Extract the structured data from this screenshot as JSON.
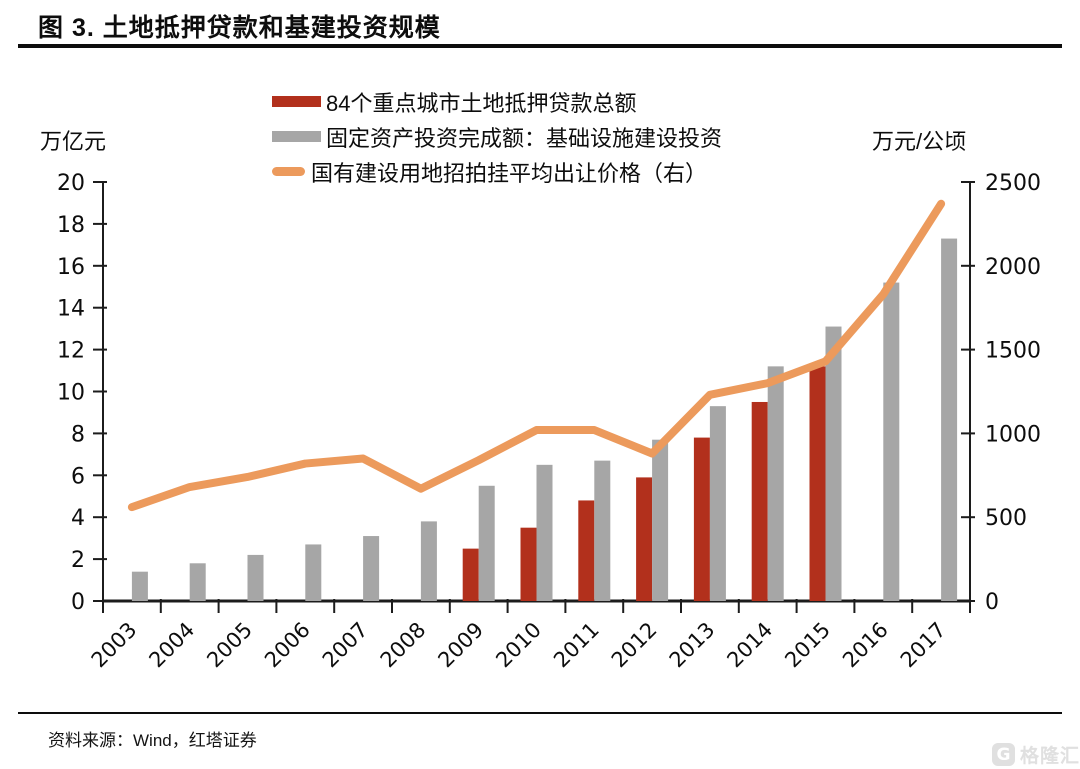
{
  "header": {
    "title": "图 3. 土地抵押贷款和基建投资规模"
  },
  "footer": {
    "source": "资料来源：Wind，红塔证券",
    "watermark": "格隆汇"
  },
  "chart_data": {
    "type": "bar",
    "subtype": "clustered bars with secondary-axis line",
    "title": "图 3. 土地抵押贷款和基建投资规模",
    "categories": [
      "2003",
      "2004",
      "2005",
      "2006",
      "2007",
      "2008",
      "2009",
      "2010",
      "2011",
      "2012",
      "2013",
      "2014",
      "2015",
      "2016",
      "2017"
    ],
    "left_axis": {
      "label": "万亿元",
      "min": 0,
      "max": 20,
      "step": 2
    },
    "right_axis": {
      "label": "万元/公顷",
      "min": 0,
      "max": 2500,
      "step": 500
    },
    "grid": false,
    "legend_position": "top",
    "series": [
      {
        "name": "84个重点城市土地抵押贷款总额",
        "type": "bar",
        "axis": "left",
        "color": "#B2301C",
        "values": [
          null,
          null,
          null,
          null,
          null,
          null,
          2.5,
          3.5,
          4.8,
          5.9,
          7.8,
          9.5,
          11.2,
          null,
          null
        ]
      },
      {
        "name": "固定资产投资完成额：基础设施建设投资",
        "type": "bar",
        "axis": "left",
        "color": "#A6A6A6",
        "values": [
          1.4,
          1.8,
          2.2,
          2.7,
          3.1,
          3.8,
          5.5,
          6.5,
          6.7,
          7.7,
          9.3,
          11.2,
          13.1,
          15.2,
          17.3
        ]
      },
      {
        "name": "国有建设用地招拍挂平均出让价格（右）",
        "type": "line",
        "axis": "right",
        "color": "#EC9A5C",
        "values": [
          560,
          680,
          740,
          820,
          850,
          670,
          840,
          1020,
          1020,
          880,
          1230,
          1300,
          1430,
          1830,
          2370
        ]
      }
    ]
  }
}
